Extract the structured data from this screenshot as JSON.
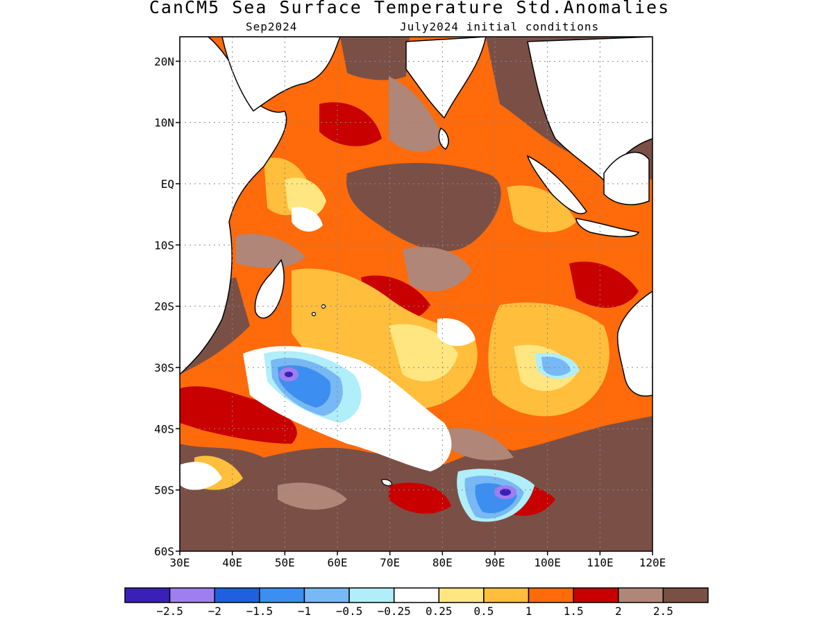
{
  "title": "CanCM5 Sea Surface Temperature Std.Anomalies",
  "subtitle_left": "Sep2024",
  "subtitle_right": "July2024 initial conditions",
  "map": {
    "lon_ticks": [
      "30E",
      "40E",
      "50E",
      "60E",
      "70E",
      "80E",
      "90E",
      "100E",
      "110E",
      "120E"
    ],
    "lat_ticks": [
      "20N",
      "10N",
      "EQ",
      "10S",
      "20S",
      "30S",
      "40S",
      "50S",
      "60S"
    ],
    "lon_range": [
      30,
      120
    ],
    "lat_range": [
      -60,
      24
    ],
    "gridlines": "dotted"
  },
  "colorbar": {
    "labels": [
      "-2.5",
      "-2",
      "-1.5",
      "-1",
      "-0.5",
      "-0.25",
      "0.25",
      "0.5",
      "1",
      "1.5",
      "2",
      "2.5"
    ],
    "colors": [
      "#3a20b8",
      "#9e7ff0",
      "#2060e0",
      "#3c8ef0",
      "#78b8f4",
      "#b0eefa",
      "#ffffff",
      "#ffe680",
      "#ffbe3c",
      "#ff6a0a",
      "#c80000",
      "#b08678",
      "#7a5046"
    ]
  }
}
